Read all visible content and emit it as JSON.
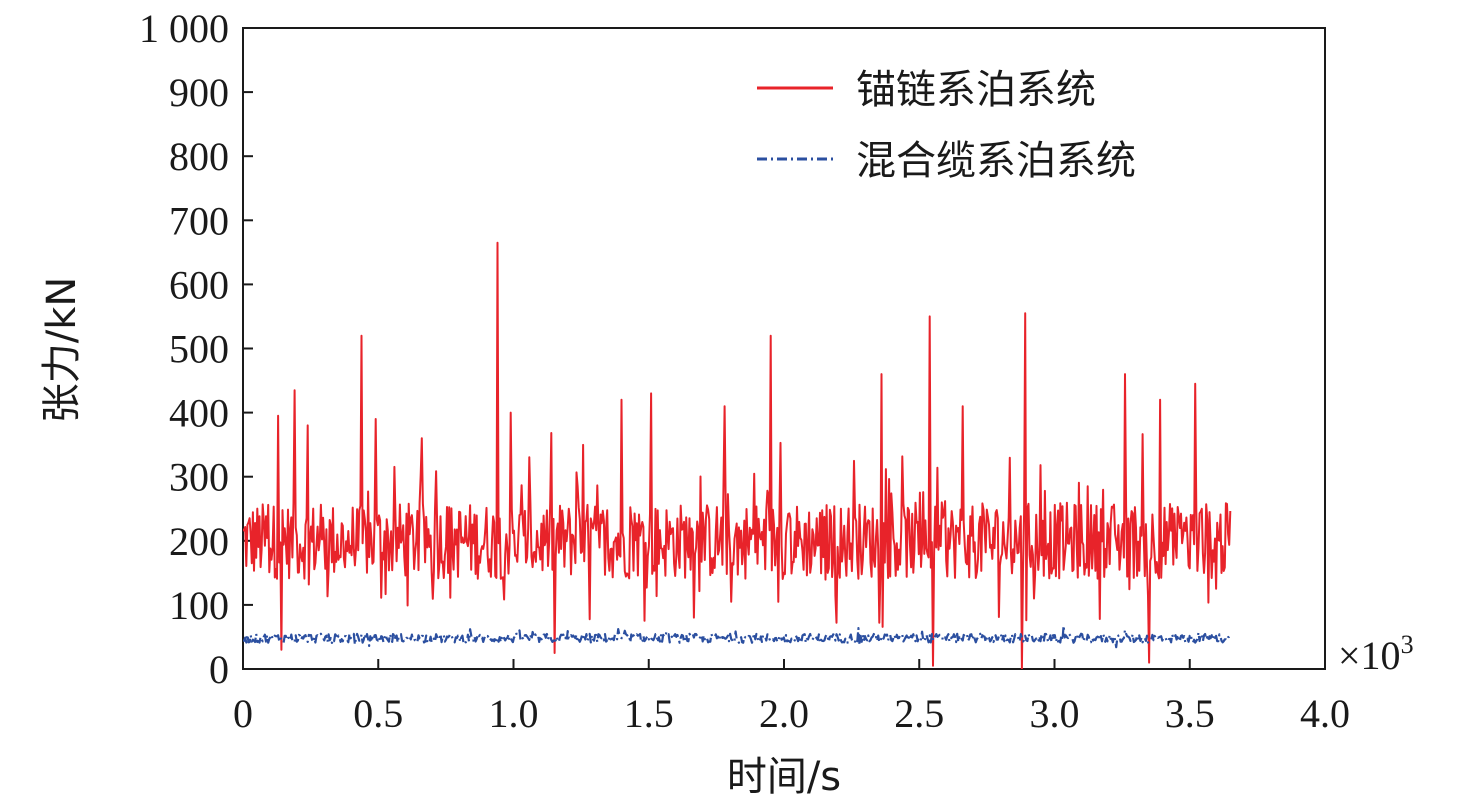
{
  "chart_data": {
    "type": "line",
    "xlabel": "时间/s",
    "ylabel": "张力/kN",
    "x_multiplier": {
      "prefix": "×10",
      "exponent": "3"
    },
    "xlim": [
      0,
      4.0
    ],
    "ylim": [
      0,
      1000
    ],
    "x_ticks": [
      0,
      0.5,
      1.0,
      1.5,
      2.0,
      2.5,
      3.0,
      3.5,
      4.0
    ],
    "x_tick_labels": [
      "0",
      "0.5",
      "1.0",
      "1.5",
      "2.0",
      "2.5",
      "3.0",
      "3.5",
      "4.0"
    ],
    "y_ticks": [
      0,
      100,
      200,
      300,
      400,
      500,
      600,
      700,
      800,
      900,
      1000
    ],
    "y_tick_labels": [
      "0",
      "100",
      "200",
      "300",
      "400",
      "500",
      "600",
      "700",
      "800",
      "900",
      "1 000"
    ],
    "grid": false,
    "legend_position": "top-right",
    "series": [
      {
        "name": "锚链系泊系统",
        "color": "#e8232a",
        "line_style": "solid",
        "mean": 200,
        "x_range": [
          0,
          3.65
        ],
        "peaks": [
          [
            0.13,
            395
          ],
          [
            0.14,
            30
          ],
          [
            0.19,
            435
          ],
          [
            0.24,
            380
          ],
          [
            0.44,
            520
          ],
          [
            0.49,
            390
          ],
          [
            0.66,
            360
          ],
          [
            0.94,
            665
          ],
          [
            0.99,
            400
          ],
          [
            1.15,
            25
          ],
          [
            1.4,
            420
          ],
          [
            1.51,
            430
          ],
          [
            1.78,
            410
          ],
          [
            1.95,
            520
          ],
          [
            2.36,
            460
          ],
          [
            2.54,
            550
          ],
          [
            2.55,
            5
          ],
          [
            2.66,
            410
          ],
          [
            2.89,
            555
          ],
          [
            2.88,
            0
          ],
          [
            3.26,
            460
          ],
          [
            3.35,
            10
          ],
          [
            3.39,
            420
          ],
          [
            3.52,
            445
          ]
        ]
      },
      {
        "name": "混合缆系泊系统",
        "color": "#2b4fa0",
        "line_style": "dash-dot",
        "mean": 48,
        "x_range": [
          0,
          3.65
        ]
      }
    ]
  }
}
